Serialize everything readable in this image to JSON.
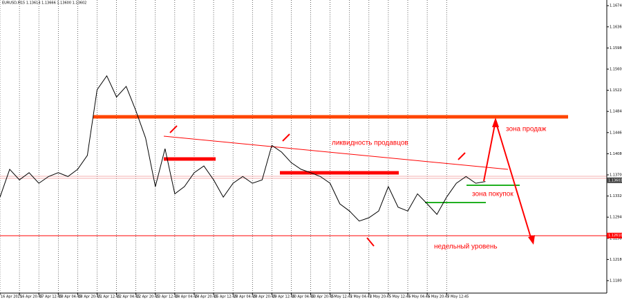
{
  "chart_data": {
    "type": "line",
    "title": "EURUSD,M15  1.13614 1.13666 1.13600 1.13602",
    "annotations": [
      "ликвидность продавцов",
      "зона продаж",
      "зона покупок",
      "недельный уровень"
    ],
    "series": [
      {
        "color": "#000000",
        "values": [
          1.133,
          1.138,
          1.1361,
          1.1374,
          1.1355,
          1.1367,
          1.1374,
          1.1367,
          1.138,
          1.1405,
          1.1523,
          1.1548,
          1.151,
          1.1529,
          1.1485,
          1.1436,
          1.1349,
          1.1417,
          1.1336,
          1.1349,
          1.1374,
          1.1386,
          1.1361,
          1.133,
          1.1355,
          1.1367,
          1.1355,
          1.1361,
          1.1423,
          1.1411,
          1.1392,
          1.138,
          1.1374,
          1.1367,
          1.1355,
          1.1318,
          1.1305,
          1.1287,
          1.1293,
          1.1305,
          1.1349,
          1.1312,
          1.1305,
          1.1336,
          1.1318,
          1.1299,
          1.133,
          1.1355,
          1.1367,
          1.1355,
          1.1358
        ]
      }
    ],
    "xlim": [
      0,
      62.5
    ],
    "xticks": [
      {
        "value": 0,
        "label": "16 Apr 2025"
      },
      {
        "value": 2,
        "label": "16 Apr 20:45"
      },
      {
        "value": 4,
        "label": "17 Apr 12:45"
      },
      {
        "value": 6,
        "label": "18 Apr 04:45"
      },
      {
        "value": 8,
        "label": "18 Apr 20:45"
      },
      {
        "value": 10,
        "label": "21 Apr 12:45"
      },
      {
        "value": 12,
        "label": "22 Apr 04:45"
      },
      {
        "value": 14,
        "label": "22 Apr 20:45"
      },
      {
        "value": 16,
        "label": "23 Apr 12:45"
      },
      {
        "value": 18,
        "label": "24 Apr 04:45"
      },
      {
        "value": 20,
        "label": "24 Apr 20:45"
      },
      {
        "value": 22,
        "label": "25 Apr 12:45"
      },
      {
        "value": 24,
        "label": "28 Apr 04:45"
      },
      {
        "value": 26,
        "label": "28 Apr 20:45"
      },
      {
        "value": 28,
        "label": "29 Apr 12:45"
      },
      {
        "value": 30,
        "label": "30 Apr 04:45"
      },
      {
        "value": 32,
        "label": "30 Apr 20:45"
      },
      {
        "value": 34,
        "label": "1 May 12:45"
      },
      {
        "value": 36,
        "label": "2 May 04:45"
      },
      {
        "value": 38,
        "label": "2 May 20:45"
      },
      {
        "value": 40,
        "label": "5 May 12:45"
      },
      {
        "value": 42,
        "label": "6 May 04:45"
      },
      {
        "value": 44,
        "label": "6 May 20:45"
      },
      {
        "value": 46,
        "label": "7 May 12:45"
      }
    ],
    "ylim": [
      1.11576,
      1.16842
    ],
    "yticks": [
      {
        "value": 1.118,
        "label": "1.11800"
      },
      {
        "value": 1.1218,
        "label": "1.12180"
      },
      {
        "value": 1.1256,
        "label": "1.12560"
      },
      {
        "value": 1.1294,
        "label": "1.12940"
      },
      {
        "value": 1.1332,
        "label": "1.13320"
      },
      {
        "value": 1.137,
        "label": "1.13700"
      },
      {
        "value": 1.1408,
        "label": "1.14080"
      },
      {
        "value": 1.1446,
        "label": "1.14460"
      },
      {
        "value": 1.1484,
        "label": "1.14840"
      },
      {
        "value": 1.1522,
        "label": "1.15220"
      },
      {
        "value": 1.156,
        "label": "1.15600"
      },
      {
        "value": 1.1598,
        "label": "1.15980"
      },
      {
        "value": 1.1636,
        "label": "1.16360"
      },
      {
        "value": 1.1674,
        "label": "1.16740"
      }
    ],
    "price_markers": [
      {
        "value": 1.13603,
        "label": "1.13603",
        "color": "#404040"
      },
      {
        "value": 1.1261,
        "label": "1.12610",
        "color": "#ff0000"
      }
    ],
    "grid": true
  }
}
